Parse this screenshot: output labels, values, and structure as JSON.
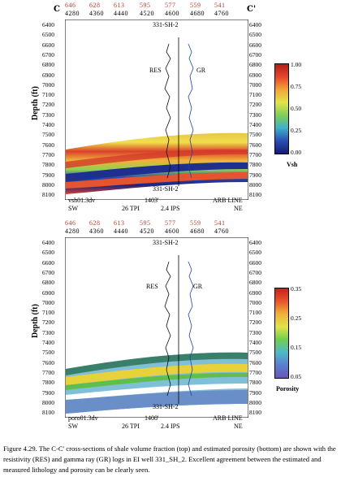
{
  "top": {
    "corner_left": "C",
    "corner_right": "C'",
    "trace_numbers": [
      "646",
      "628",
      "613",
      "595",
      "577",
      "559",
      "541"
    ],
    "bins": [
      "4280",
      "4360",
      "4440",
      "4520",
      "4600",
      "4680",
      "4760"
    ],
    "depth_ticks": [
      "6400",
      "6500",
      "6600",
      "6700",
      "6800",
      "6900",
      "7000",
      "7100",
      "7200",
      "7300",
      "7400",
      "7500",
      "7600",
      "7700",
      "7800",
      "7900",
      "8000",
      "8100"
    ],
    "y_label": "Depth (ft)",
    "well_label": "331-SH-2",
    "well_label_bottom": "331-SH-2",
    "log_left": "RES",
    "log_right": "GR",
    "file_name": "vsh01.3dv",
    "spacing": "1403'",
    "tpi": "26 TPI",
    "ips": "2.4 IPS",
    "line": "ARB LINE",
    "dir_left": "SW",
    "dir_right": "NE",
    "colorbar": {
      "ticks": [
        "1.00",
        "0.75",
        "0.50",
        "0.25",
        "0.00"
      ],
      "label": "Vsh"
    }
  },
  "bottom": {
    "trace_numbers": [
      "646",
      "628",
      "613",
      "595",
      "577",
      "559",
      "541"
    ],
    "bins": [
      "4280",
      "4360",
      "4440",
      "4520",
      "4600",
      "4680",
      "4760"
    ],
    "depth_ticks": [
      "6400",
      "6500",
      "6600",
      "6700",
      "6800",
      "6900",
      "7000",
      "7100",
      "7200",
      "7300",
      "7400",
      "7500",
      "7600",
      "7700",
      "7800",
      "7900",
      "8000",
      "8100"
    ],
    "y_label": "Depth (ft)",
    "well_label": "331-SH-2",
    "well_label_bottom": "331-SH-2",
    "log_left": "RES",
    "log_right": "GR",
    "file_name": "poro01.3dv",
    "spacing": "1408'",
    "tpi": "26 TPI",
    "ips": "2.4 IPS",
    "line": "ARB LINE",
    "dir_left": "SW",
    "dir_right": "NE",
    "colorbar": {
      "ticks": [
        "0.35",
        "0.25",
        "0.15",
        "0.05"
      ],
      "label": "Porosity"
    }
  },
  "caption": "Figure 4.29.  The C-C' cross-sections of shale volume fraction (top) and estimated porosity (bottom) are shown with the resistivity (RES) and gamma ray (GR) logs in  EI well 331_SH_2.  Excellent agreement between the estimated and measured lithology and porosity can be clearly seen."
}
